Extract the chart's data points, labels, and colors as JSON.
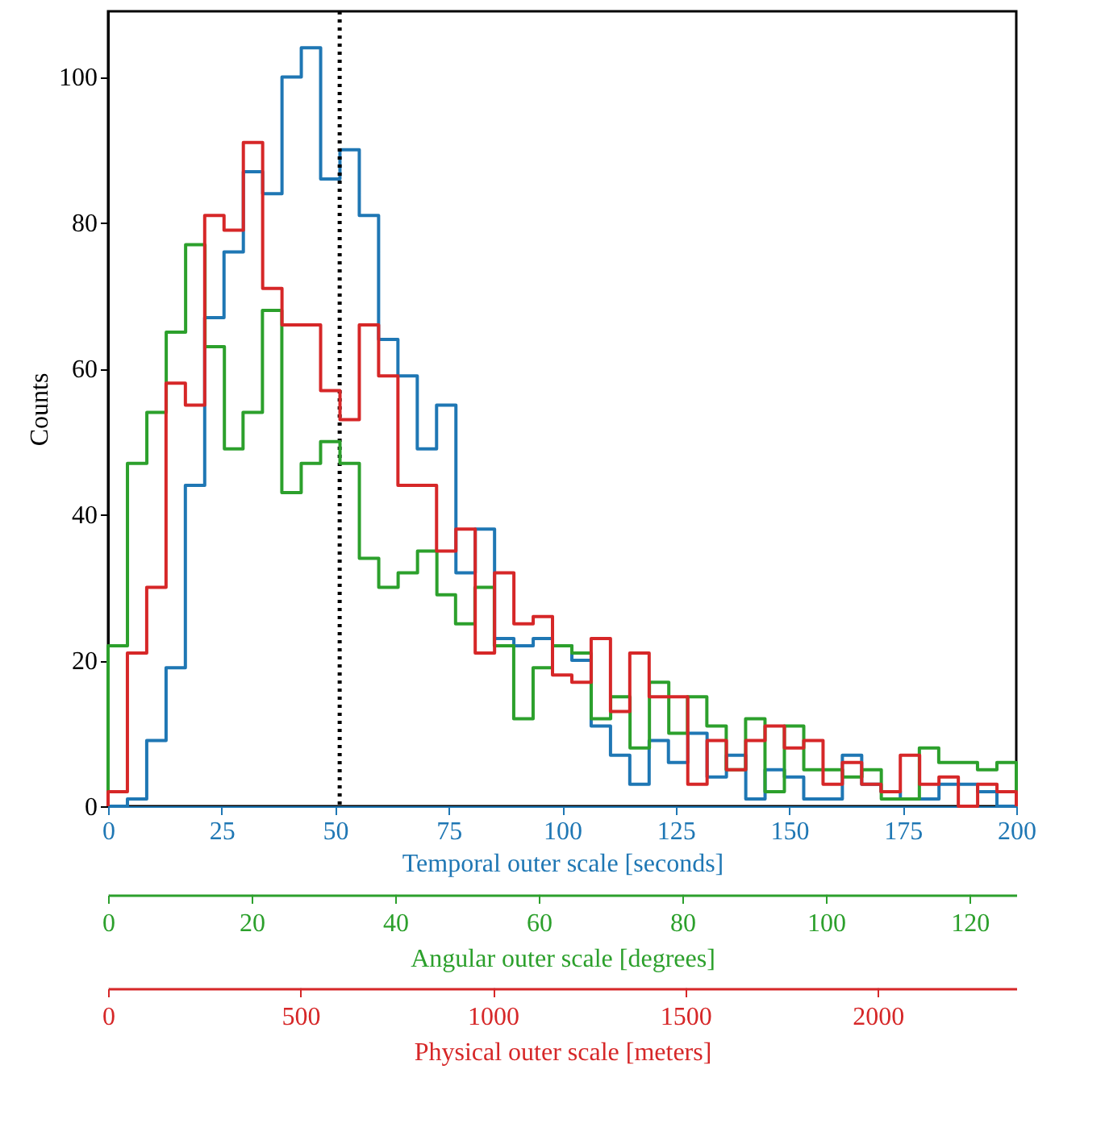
{
  "chart_data": [
    {
      "type": "histogram",
      "ylabel": "Counts",
      "xlabel": "Temporal outer scale [seconds]",
      "bins": [
        0,
        4.26,
        8.51,
        12.77,
        17.02,
        21.28,
        25.53,
        29.79,
        34.04,
        38.3,
        42.55,
        46.81,
        51.06,
        55.32,
        59.57,
        63.83,
        68.09,
        72.34,
        76.6,
        80.85,
        85.11,
        89.36,
        93.62,
        97.87,
        102.13,
        106.38,
        110.64,
        114.89,
        119.15,
        123.4,
        127.66,
        131.91,
        136.17,
        140.43,
        144.68,
        148.94,
        153.19,
        157.45,
        161.7,
        165.96,
        170.21,
        174.47,
        178.72,
        182.98,
        187.23,
        191.49,
        195.74,
        200
      ],
      "series": [
        {
          "color": "#1f77b4",
          "values": [
            0,
            1,
            9,
            19,
            44,
            67,
            76,
            87,
            84,
            100,
            104,
            86,
            90,
            81,
            64,
            59,
            49,
            55,
            32,
            38,
            23,
            22,
            23,
            22,
            20,
            11,
            7,
            3,
            9,
            6,
            10,
            4,
            7,
            1,
            5,
            4,
            1,
            1,
            7,
            3,
            2,
            1,
            1,
            3,
            3,
            2,
            0
          ]
        }
      ],
      "xlim": [
        0,
        200
      ],
      "xticks": [
        0,
        25,
        50,
        75,
        100,
        125,
        150,
        175,
        200
      ],
      "ylim": [
        0,
        109
      ],
      "yticks": [
        0,
        20,
        40,
        60,
        80,
        100
      ],
      "ref_lines": [
        {
          "axis": "x",
          "value": 51,
          "color": "#000000",
          "line_style": "dotted"
        }
      ],
      "grid": false
    },
    {
      "type": "histogram",
      "xlabel": "Angular outer scale [degrees]",
      "xlim": [
        0,
        126.5
      ],
      "xticks": [
        0,
        20,
        40,
        60,
        80,
        100,
        120
      ],
      "ylim": [
        0,
        109
      ],
      "bins": [
        0,
        2.7,
        5.4,
        8.1,
        10.8,
        13.5,
        16.2,
        18.8,
        21.5,
        24.2,
        26.9,
        29.6,
        32.3,
        35,
        37.7,
        40.4,
        43.1,
        45.8,
        48.4,
        51.1,
        53.8,
        56.5,
        59.2,
        61.9,
        64.6,
        67.3,
        70,
        72.7,
        75.4,
        78.1,
        80.7,
        83.4,
        86.1,
        88.8,
        91.5,
        94.2,
        96.9,
        99.6,
        102.3,
        105,
        107.7,
        110.4,
        113,
        115.7,
        118.4,
        121.1,
        123.8,
        126.5
      ],
      "series": [
        {
          "color": "#2ca02c",
          "values": [
            22,
            47,
            54,
            65,
            77,
            63,
            49,
            54,
            68,
            43,
            47,
            50,
            47,
            34,
            30,
            32,
            35,
            29,
            25,
            30,
            22,
            12,
            19,
            22,
            21,
            12,
            15,
            8,
            17,
            10,
            15,
            11,
            5,
            12,
            2,
            11,
            5,
            5,
            4,
            5,
            1,
            1,
            8,
            6,
            6,
            5,
            6
          ]
        }
      ],
      "tick_labels": "x"
    },
    {
      "type": "histogram",
      "xlabel": "Physical outer scale [meters]",
      "xlim": [
        0,
        2360
      ],
      "xticks": [
        0,
        500,
        1000,
        1500,
        2000
      ],
      "ylim": [
        0,
        109
      ],
      "bins": [
        0,
        50.2,
        100.4,
        150.6,
        200.9,
        251.1,
        301.3,
        351.5,
        401.7,
        451.9,
        502.1,
        552.3,
        602.6,
        652.8,
        703,
        753.2,
        803.4,
        853.6,
        903.8,
        954,
        1004.3,
        1054.5,
        1104.7,
        1154.9,
        1205.1,
        1255.3,
        1305.5,
        1355.7,
        1406,
        1456.2,
        1506.4,
        1556.6,
        1606.8,
        1657,
        1707.2,
        1757.4,
        1807.7,
        1857.9,
        1908.1,
        1958.3,
        2008.5,
        2058.7,
        2108.9,
        2159.1,
        2209.4,
        2259.6,
        2309.8,
        2360
      ],
      "series": [
        {
          "color": "#d62728",
          "values": [
            2,
            21,
            30,
            58,
            55,
            81,
            79,
            91,
            71,
            66,
            66,
            57,
            53,
            66,
            59,
            44,
            44,
            35,
            38,
            21,
            32,
            25,
            26,
            18,
            17,
            23,
            13,
            21,
            15,
            15,
            3,
            9,
            5,
            9,
            11,
            8,
            9,
            3,
            6,
            3,
            2,
            7,
            3,
            4,
            0,
            3,
            2
          ]
        }
      ],
      "tick_labels": "x"
    }
  ]
}
